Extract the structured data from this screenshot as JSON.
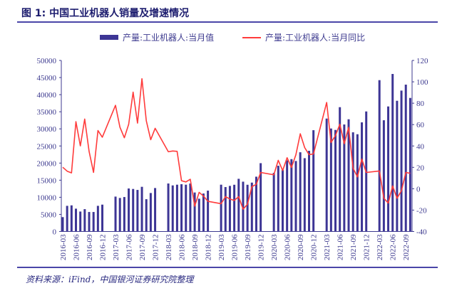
{
  "header": {
    "title": "图 1:  中国工业机器人销量及增速情况"
  },
  "footer": {
    "source": "资料来源：iFind，中国银河证券研究院整理"
  },
  "chart_data": {
    "type": "bar+line",
    "title": "中国工业机器人销量及增速情况",
    "colors": {
      "bar": "#3d3595",
      "line": "#ff3b3b",
      "axis": "#3d3a8f"
    },
    "legend_position": "top-center",
    "x": [
      "2016-03",
      "2016-04",
      "2016-05",
      "2016-06",
      "2016-07",
      "2016-08",
      "2016-09",
      "2016-10",
      "2016-11",
      "2016-12",
      "2017-01",
      "2017-02",
      "2017-03",
      "2017-04",
      "2017-05",
      "2017-06",
      "2017-07",
      "2017-08",
      "2017-09",
      "2017-10",
      "2017-11",
      "2017-12",
      "2018-01",
      "2018-02",
      "2018-03",
      "2018-04",
      "2018-05",
      "2018-06",
      "2018-07",
      "2018-08",
      "2018-09",
      "2018-10",
      "2018-11",
      "2018-12",
      "2019-01",
      "2019-02",
      "2019-03",
      "2019-04",
      "2019-05",
      "2019-06",
      "2019-07",
      "2019-08",
      "2019-09",
      "2019-10",
      "2019-11",
      "2019-12",
      "2020-01",
      "2020-02",
      "2020-03",
      "2020-04",
      "2020-05",
      "2020-06",
      "2020-07",
      "2020-08",
      "2020-09",
      "2020-10",
      "2020-11",
      "2020-12",
      "2021-01",
      "2021-02",
      "2021-03",
      "2021-04",
      "2021-05",
      "2021-06",
      "2021-07",
      "2021-08",
      "2021-09",
      "2021-10",
      "2021-11",
      "2021-12",
      "2022-01",
      "2022-02",
      "2022-03",
      "2022-04",
      "2022-05",
      "2022-06",
      "2022-07",
      "2022-08",
      "2022-09",
      "2022-10"
    ],
    "tick_labels": [
      "2016-03",
      "2016-06",
      "2016-09",
      "2016-12",
      "2017-03",
      "2017-06",
      "2017-09",
      "2017-12",
      "2018-03",
      "2018-06",
      "2018-09",
      "2018-12",
      "2019-03",
      "2019-06",
      "2019-09",
      "2019-12",
      "2020-03",
      "2020-06",
      "2020-09",
      "2020-12",
      "2021-03",
      "2021-06",
      "2021-09",
      "2021-12",
      "2022-03",
      "2022-06",
      "2022-09"
    ],
    "series": [
      {
        "name": "产量:工业机器人:当月值",
        "type": "bar",
        "axis": "left",
        "values": [
          4200,
          7500,
          7640,
          6670,
          5830,
          6530,
          5700,
          5700,
          7500,
          7850,
          null,
          null,
          10200,
          9800,
          10070,
          12570,
          12430,
          12150,
          13060,
          9440,
          11250,
          12700,
          null,
          null,
          14030,
          13470,
          13680,
          13820,
          13680,
          14030,
          11400,
          9580,
          11100,
          11940,
          null,
          null,
          13680,
          12990,
          13330,
          13660,
          15400,
          14560,
          13660,
          14290,
          16020,
          19970,
          null,
          null,
          17130,
          19210,
          17960,
          20800,
          21150,
          20600,
          23160,
          21430,
          23580,
          29610,
          null,
          null,
          33010,
          30100,
          29680,
          36340,
          31280,
          32800,
          28990,
          28430,
          31900,
          35090,
          null,
          null,
          44240,
          32520,
          36550,
          46050,
          38210,
          41190,
          42930,
          39040
        ]
      },
      {
        "name": "产量:工业机器人:当月同比",
        "type": "line",
        "axis": "right",
        "values": [
          20.1,
          16.4,
          14.8,
          62.7,
          40.1,
          65.2,
          34.8,
          15.3,
          54.4,
          48.2,
          null,
          null,
          78,
          57.6,
          47.7,
          60.3,
          90.3,
          61.4,
          102.9,
          63.6,
          45.9,
          56.5,
          null,
          null,
          34.6,
          35.3,
          35,
          7.5,
          6.4,
          8.8,
          -16.3,
          -3.4,
          -6.9,
          -11.8,
          null,
          null,
          -14,
          -7.4,
          -9.6,
          -11,
          -7.4,
          -19.2,
          -14.5,
          1.9,
          4.1,
          15.2,
          null,
          null,
          13,
          26.6,
          17,
          29,
          19.9,
          31.7,
          51.4,
          38.6,
          31.9,
          32.6,
          null,
          null,
          80.7,
          43.2,
          49.7,
          60.3,
          42.1,
          57.4,
          19.2,
          11,
          27.7,
          15.2,
          null,
          null,
          16.6,
          -8.9,
          -13.4,
          2.6,
          -8.9,
          -1.8,
          15.2,
          14.4
        ]
      }
    ],
    "left_axis": {
      "ylim": [
        0,
        50000
      ],
      "ticks": [
        "0",
        "5000",
        "10000",
        "15000",
        "20000",
        "25000",
        "30000",
        "35000",
        "40000",
        "45000",
        "50000"
      ]
    },
    "right_axis": {
      "ylim": [
        -40,
        120
      ],
      "ticks": [
        "-40",
        "-20",
        "0",
        "20",
        "40",
        "60",
        "80",
        "100",
        "120"
      ]
    },
    "grid": false
  }
}
